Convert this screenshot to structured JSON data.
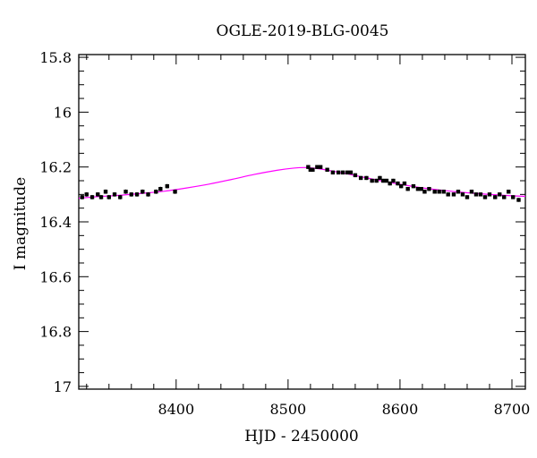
{
  "chart_data": {
    "type": "scatter",
    "title": "OGLE-2019-BLG-0045",
    "xlabel": "HJD - 2450000",
    "ylabel": "I magnitude",
    "xlim": [
      8313,
      8712
    ],
    "ylim": [
      17.01,
      15.79
    ],
    "y_inverted": true,
    "xticks": [
      8400,
      8500,
      8600,
      8700
    ],
    "xtick_labels": [
      "8400",
      "8500",
      "8600",
      "8700"
    ],
    "yticks": [
      15.8,
      16,
      16.2,
      16.4,
      16.6,
      16.8,
      17
    ],
    "ytick_labels": [
      "15.8",
      "16",
      "16.2",
      "16.4",
      "16.6",
      "16.8",
      "17"
    ],
    "grid": false,
    "colors": {
      "data": "#000000",
      "model": "#ff00ff"
    },
    "series": [
      {
        "kind": "points_with_errorbars",
        "x": [
          8316,
          8320,
          8325,
          8330,
          8333,
          8337,
          8340,
          8345,
          8350,
          8355,
          8360,
          8365,
          8370,
          8375,
          8382,
          8386,
          8392,
          8399,
          8518,
          8520,
          8522,
          8526,
          8529,
          8535,
          8540,
          8545,
          8549,
          8553,
          8556,
          8560,
          8565,
          8570,
          8575,
          8579,
          8582,
          8585,
          8588,
          8591,
          8594,
          8598,
          8601,
          8604,
          8607,
          8612,
          8616,
          8619,
          8622,
          8626,
          8631,
          8635,
          8639,
          8643,
          8648,
          8652,
          8656,
          8660,
          8664,
          8668,
          8672,
          8676,
          8680,
          8685,
          8689,
          8693,
          8697,
          8701,
          8706
        ],
        "y": [
          16.31,
          16.3,
          16.31,
          16.3,
          16.31,
          16.29,
          16.31,
          16.3,
          16.31,
          16.29,
          16.3,
          16.3,
          16.29,
          16.3,
          16.29,
          16.28,
          16.27,
          16.29,
          16.2,
          16.21,
          16.21,
          16.2,
          16.2,
          16.21,
          16.22,
          16.22,
          16.22,
          16.22,
          16.22,
          16.23,
          16.24,
          16.24,
          16.25,
          16.25,
          16.24,
          16.25,
          16.25,
          16.26,
          16.25,
          16.26,
          16.27,
          16.26,
          16.28,
          16.27,
          16.28,
          16.28,
          16.29,
          16.28,
          16.29,
          16.29,
          16.29,
          16.3,
          16.3,
          16.29,
          16.3,
          16.31,
          16.29,
          16.3,
          16.3,
          16.31,
          16.3,
          16.31,
          16.3,
          16.31,
          16.29,
          16.31,
          16.32
        ],
        "yerr": [
          0.008,
          0.008,
          0.008,
          0.008,
          0.008,
          0.008,
          0.008,
          0.008,
          0.008,
          0.008,
          0.008,
          0.008,
          0.008,
          0.008,
          0.008,
          0.008,
          0.008,
          0.008,
          0.007,
          0.007,
          0.007,
          0.007,
          0.007,
          0.007,
          0.007,
          0.007,
          0.007,
          0.007,
          0.007,
          0.007,
          0.007,
          0.007,
          0.007,
          0.007,
          0.007,
          0.007,
          0.007,
          0.007,
          0.007,
          0.007,
          0.007,
          0.007,
          0.007,
          0.007,
          0.007,
          0.007,
          0.007,
          0.007,
          0.007,
          0.007,
          0.007,
          0.007,
          0.007,
          0.007,
          0.007,
          0.007,
          0.007,
          0.007,
          0.007,
          0.007,
          0.007,
          0.007,
          0.007,
          0.007,
          0.007,
          0.007,
          0.007
        ]
      },
      {
        "kind": "model_curve",
        "x": [
          8313,
          8330,
          8350,
          8370,
          8390,
          8410,
          8430,
          8450,
          8470,
          8490,
          8505,
          8515,
          8525,
          8540,
          8560,
          8580,
          8600,
          8620,
          8640,
          8660,
          8680,
          8700,
          8712
        ],
        "y": [
          16.314,
          16.308,
          16.303,
          16.296,
          16.288,
          16.276,
          16.262,
          16.245,
          16.227,
          16.212,
          16.204,
          16.202,
          16.205,
          16.215,
          16.231,
          16.248,
          16.263,
          16.276,
          16.286,
          16.294,
          16.3,
          16.305,
          16.307
        ]
      }
    ]
  }
}
